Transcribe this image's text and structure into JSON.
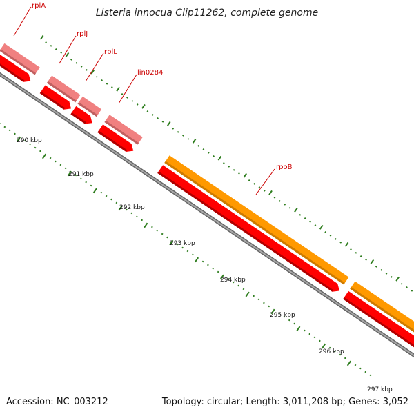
{
  "title": "Listeria innocua Clip11262, complete genome",
  "accession": "Accession: NC_003212",
  "summary": "Topology: circular; Length: 3,011,208 bp; Genes: 3,052",
  "ticks": [
    {
      "label": "290 kbp"
    },
    {
      "label": "291 kbp"
    },
    {
      "label": "292 kbp"
    },
    {
      "label": "293 kbp"
    },
    {
      "label": "294 kbp"
    },
    {
      "label": "295 kbp"
    },
    {
      "label": "296 kbp"
    },
    {
      "label": "297 kbp"
    }
  ],
  "genes": [
    {
      "name": "rplA",
      "color": "#f08080"
    },
    {
      "name": "rplJ",
      "color": "#f08080"
    },
    {
      "name": "rplL",
      "color": "#f08080"
    },
    {
      "name": "lin0284",
      "color": "#f08080"
    },
    {
      "name": "rpoB",
      "color": "#ff9900"
    }
  ],
  "colors": {
    "cds": "#ff0000",
    "backbone": "#888888",
    "tick": "#2e7d1e",
    "label": "#cc0000"
  }
}
